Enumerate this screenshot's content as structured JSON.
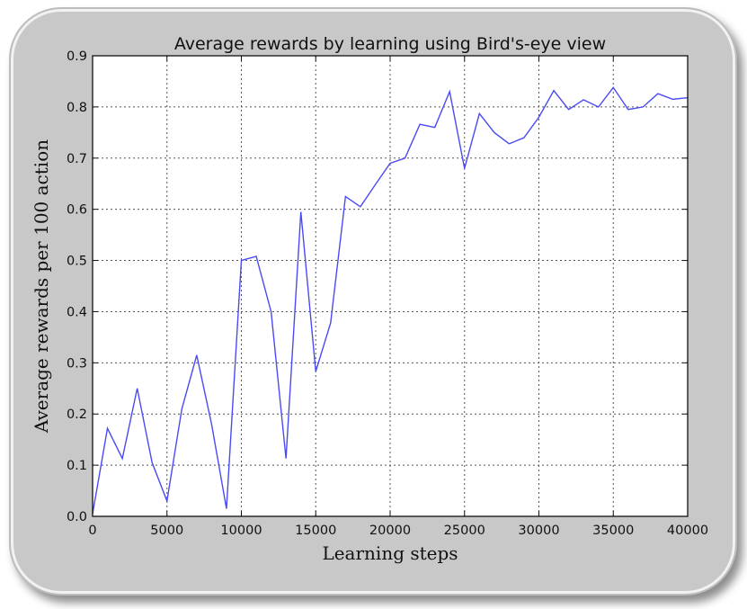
{
  "chart_data": {
    "type": "line",
    "title": "Average rewards by learning using Bird's-eye view",
    "xlabel": "Learning steps",
    "ylabel": "Average rewards per 100 action",
    "xlim": [
      0,
      40000
    ],
    "ylim": [
      0,
      0.9
    ],
    "x_ticks": [
      "0",
      "5000",
      "10000",
      "15000",
      "20000",
      "25000",
      "30000",
      "35000",
      "40000"
    ],
    "x_tick_values": [
      0,
      5000,
      10000,
      15000,
      20000,
      25000,
      30000,
      35000,
      40000
    ],
    "y_ticks": [
      "0.0",
      "0.1",
      "0.2",
      "0.3",
      "0.4",
      "0.5",
      "0.6",
      "0.7",
      "0.8",
      "0.9"
    ],
    "y_tick_values": [
      0,
      0.1,
      0.2,
      0.3,
      0.4,
      0.5,
      0.6,
      0.7,
      0.8,
      0.9
    ],
    "grid": true,
    "line_color": "#4a4af5",
    "series": [
      {
        "x": [
          0,
          1000,
          2000,
          3000,
          4000,
          5000,
          6000,
          7000,
          8000,
          9000,
          10000,
          11000,
          12000,
          13000,
          14000,
          15000,
          16000,
          17000,
          18000,
          19000,
          20000,
          21000,
          22000,
          23000,
          24000,
          25000,
          26000,
          27000,
          28000,
          29000,
          30000,
          31000,
          32000,
          33000,
          34000,
          35000,
          36000,
          37000,
          38000,
          39000,
          40000
        ],
        "values": [
          0.005,
          0.172,
          0.113,
          0.25,
          0.105,
          0.03,
          0.21,
          0.315,
          0.18,
          0.015,
          0.5,
          0.508,
          0.4,
          0.113,
          0.595,
          0.283,
          0.378,
          0.625,
          0.605,
          0.648,
          0.69,
          0.7,
          0.766,
          0.76,
          0.83,
          0.68,
          0.787,
          0.75,
          0.728,
          0.74,
          0.78,
          0.832,
          0.795,
          0.814,
          0.8,
          0.838,
          0.795,
          0.8,
          0.826,
          0.815,
          0.818
        ]
      }
    ]
  }
}
